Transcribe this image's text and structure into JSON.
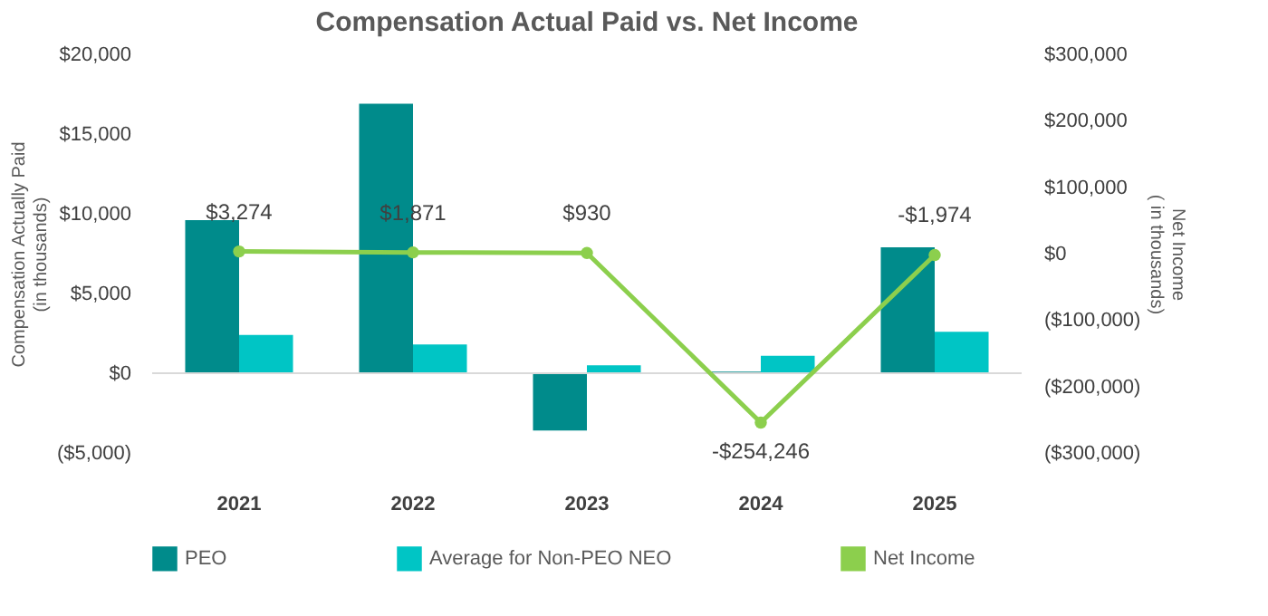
{
  "chart_data": {
    "type": "bar",
    "title": "Compensation Actual Paid vs. Net Income",
    "categories": [
      "2021",
      "2022",
      "2023",
      "2024",
      "2025"
    ],
    "ylabel": "Compensation Actually Paid\n(in thousands)",
    "y2label": "Net Income\n( in thousands)",
    "ylim": [
      -5000,
      20000
    ],
    "yticks": [
      {
        "value": -5000,
        "label": "($5,000)"
      },
      {
        "value": 0,
        "label": "$0"
      },
      {
        "value": 5000,
        "label": "$5,000"
      },
      {
        "value": 10000,
        "label": "$10,000"
      },
      {
        "value": 15000,
        "label": "$15,000"
      },
      {
        "value": 20000,
        "label": "$20,000"
      }
    ],
    "y2lim": [
      -300000,
      300000
    ],
    "y2ticks": [
      {
        "value": -300000,
        "label": "($300,000)"
      },
      {
        "value": -200000,
        "label": "($200,000)"
      },
      {
        "value": -100000,
        "label": "($100,000)"
      },
      {
        "value": 0,
        "label": "$0"
      },
      {
        "value": 100000,
        "label": "$100,000"
      },
      {
        "value": 200000,
        "label": "$200,000"
      },
      {
        "value": 300000,
        "label": "$300,000"
      }
    ],
    "series": [
      {
        "name": "PEO",
        "color": "#008b8b",
        "values": [
          9600,
          16900,
          -3600,
          100,
          7900
        ]
      },
      {
        "name": "Average for Non-PEO NEO",
        "color": "#00c5c5",
        "values": [
          2400,
          1800,
          500,
          1100,
          2600
        ]
      },
      {
        "name": "Net Income",
        "type": "line",
        "axis": "y2",
        "color": "#8ccf4d",
        "marker": "circle",
        "values": [
          3274,
          1871,
          930,
          -254246,
          -1974
        ],
        "value_labels": [
          "$3,274",
          "$1,871",
          "$930",
          "-$254,246",
          "-$1,974"
        ]
      }
    ],
    "legend": "bottom"
  }
}
